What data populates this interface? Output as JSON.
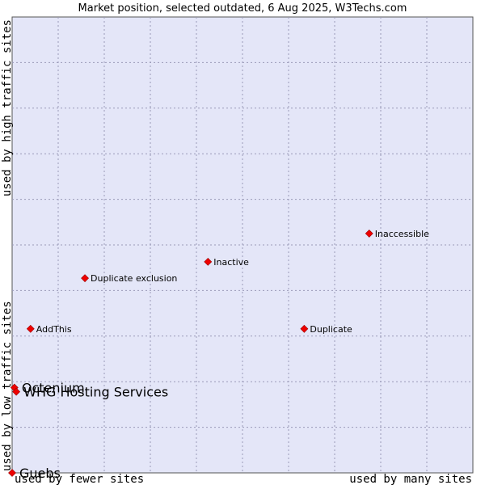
{
  "chart_data": {
    "type": "scatter",
    "title": "Market position, selected outdated, 6 Aug 2025, W3Techs.com",
    "xlabel_left": "used by fewer sites",
    "xlabel_right": "used by many sites",
    "ylabel_low": "used by low traffic sites",
    "ylabel_high": "used by high traffic sites",
    "xlim": [
      0,
      100
    ],
    "ylim": [
      0,
      100
    ],
    "grid": true,
    "points": [
      {
        "label": "Inaccessible",
        "x": 77.5,
        "y": 52.5,
        "size": "small"
      },
      {
        "label": "Inactive",
        "x": 42.5,
        "y": 46.3,
        "size": "small"
      },
      {
        "label": "Duplicate exclusion",
        "x": 15.8,
        "y": 42.7,
        "size": "small"
      },
      {
        "label": "AddThis",
        "x": 4.0,
        "y": 31.6,
        "size": "small"
      },
      {
        "label": "Duplicate",
        "x": 63.4,
        "y": 31.6,
        "size": "small"
      },
      {
        "label": "Octenium",
        "x": 0.5,
        "y": 18.7,
        "size": "large"
      },
      {
        "label": "WHG Hosting Services",
        "x": 0.9,
        "y": 17.8,
        "size": "large"
      },
      {
        "label": "Guebs",
        "x": 0.0,
        "y": 0.0,
        "size": "large"
      }
    ]
  }
}
